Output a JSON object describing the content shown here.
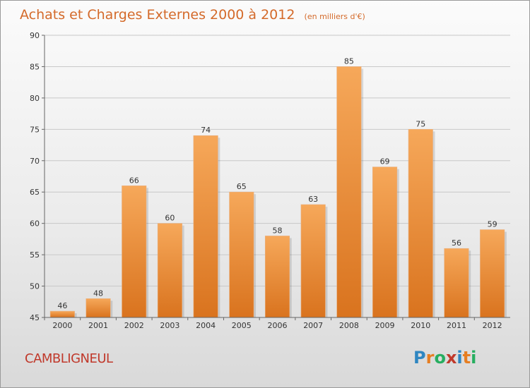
{
  "title": "Achats et Charges Externes 2000 à 2012",
  "unit_note": "(en milliers d'€)",
  "commune": "CAMBLIGNEUL",
  "brand": {
    "text": "Proxiti",
    "letters": [
      "P",
      "r",
      "o",
      "x",
      "i",
      "t",
      "i"
    ],
    "colors": [
      "#2e86c1",
      "#e67e22",
      "#27ae60",
      "#c0392b",
      "#2e86c1",
      "#e67e22",
      "#27ae60"
    ]
  },
  "colors": {
    "bar_light": "#f6a85a",
    "bar_dark": "#d9731e",
    "title": "#d46a2a"
  },
  "chart_data": {
    "type": "bar",
    "title": "Achats et Charges Externes 2000 à 2012",
    "categories": [
      "2000",
      "2001",
      "2002",
      "2003",
      "2004",
      "2005",
      "2006",
      "2007",
      "2008",
      "2009",
      "2010",
      "2011",
      "2012"
    ],
    "values": [
      46,
      48,
      66,
      60,
      74,
      65,
      58,
      63,
      85,
      69,
      75,
      56,
      59
    ],
    "ylim": [
      45,
      90
    ],
    "yticks": [
      45,
      50,
      55,
      60,
      65,
      70,
      75,
      80,
      85,
      90
    ],
    "grid": true
  }
}
